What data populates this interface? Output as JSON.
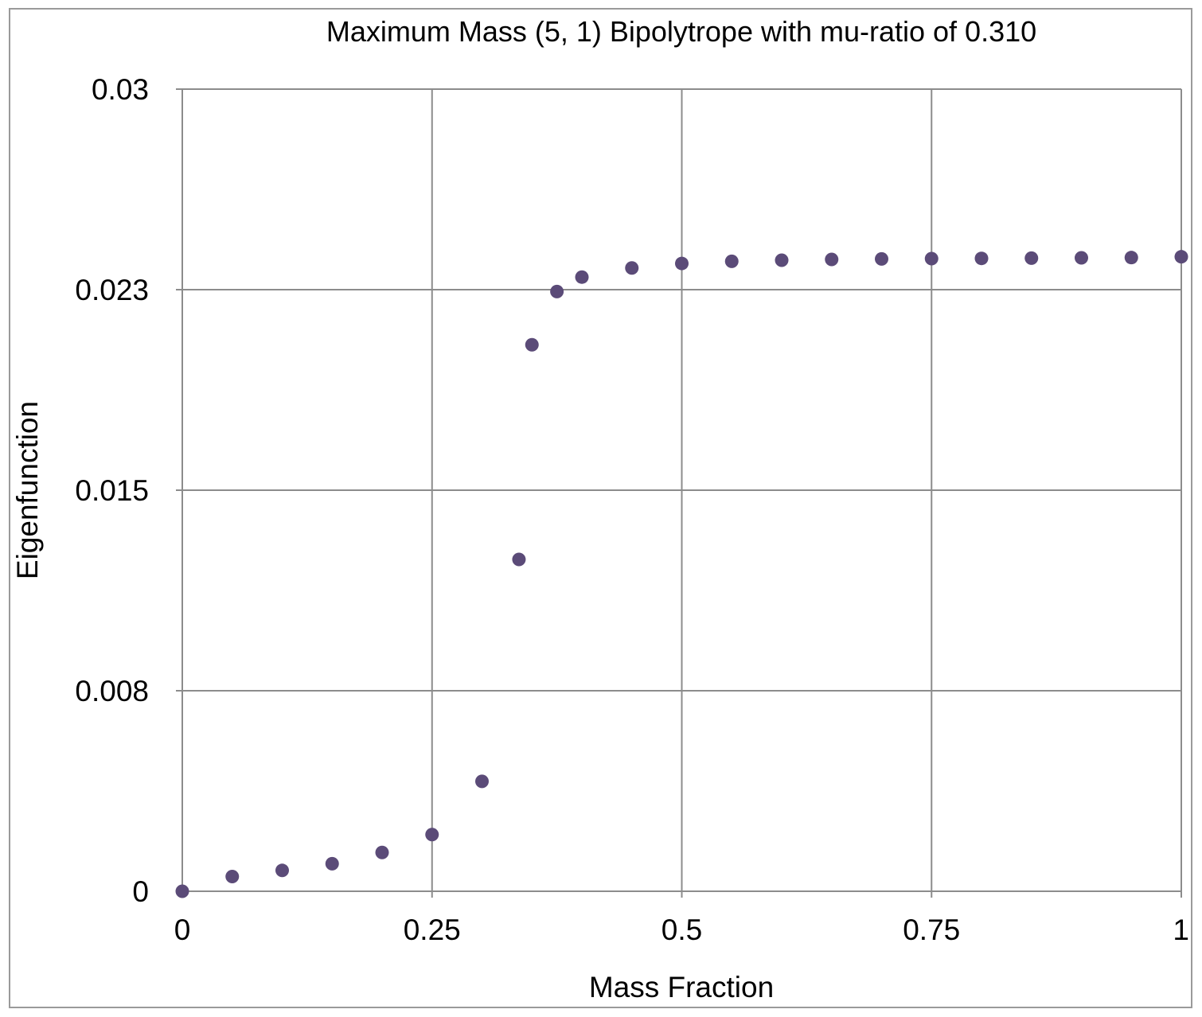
{
  "chart_data": {
    "type": "scatter",
    "title": "Maximum Mass (5, 1) Bipolytrope with mu-ratio of 0.310",
    "xlabel": "Mass Fraction",
    "ylabel": "Eigenfunction",
    "xlim": [
      0,
      1
    ],
    "ylim": [
      0,
      0.03
    ],
    "x_ticks": [
      0,
      0.25,
      0.5,
      0.75,
      1
    ],
    "x_tick_labels": [
      "0",
      "0.25",
      "0.5",
      "0.75",
      "1"
    ],
    "y_ticks": [
      0,
      0.0075,
      0.015,
      0.0225,
      0.03
    ],
    "y_tick_labels": [
      "0",
      "0.008",
      "0.015",
      "0.023",
      "0.03"
    ],
    "grid": true,
    "legend": "none",
    "marker_color": "#5b4b78",
    "grid_color": "#8c8c8c",
    "series": [
      {
        "name": "Eigenfunction",
        "x": [
          0,
          0.05,
          0.1,
          0.15,
          0.2,
          0.25,
          0.3,
          0.337,
          0.35,
          0.375,
          0.4,
          0.45,
          0.5,
          0.55,
          0.6,
          0.65,
          0.7,
          0.75,
          0.8,
          0.85,
          0.9,
          0.95,
          1.0
        ],
        "y": [
          0,
          0.00055,
          0.00078,
          0.00103,
          0.00145,
          0.00212,
          0.00411,
          0.01241,
          0.02044,
          0.02243,
          0.02297,
          0.02331,
          0.02348,
          0.02356,
          0.0236,
          0.02363,
          0.02365,
          0.02366,
          0.02367,
          0.02368,
          0.02369,
          0.0237,
          0.02373
        ]
      }
    ]
  }
}
